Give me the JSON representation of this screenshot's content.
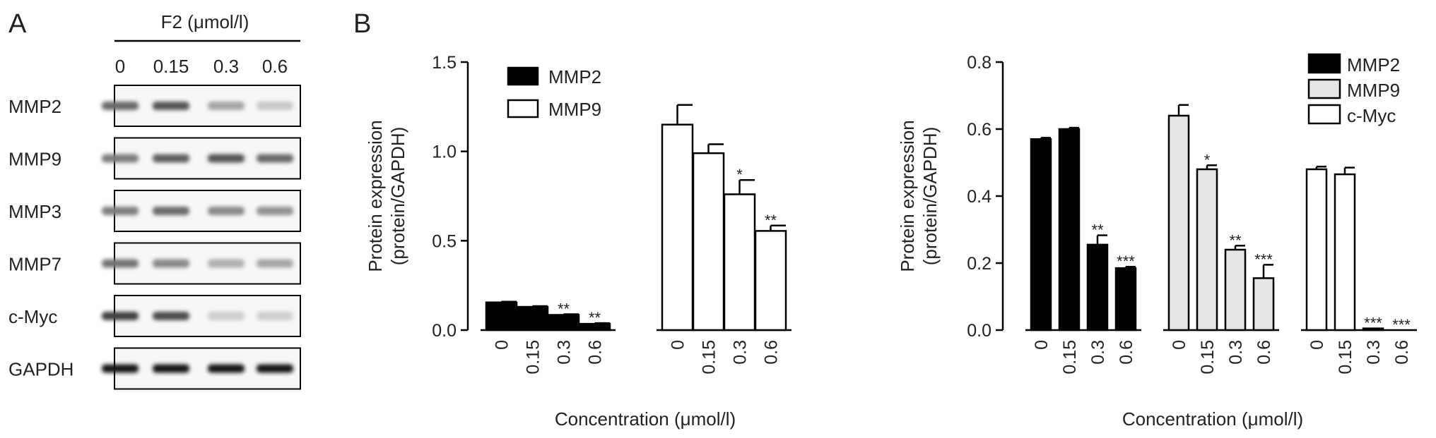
{
  "panels": {
    "a": "A",
    "b": "B"
  },
  "blot": {
    "treatment_label": "F2 (μmol/l)",
    "lane_labels": [
      "0",
      "0.15",
      "0.3",
      "0.6"
    ],
    "rows": [
      {
        "name": "MMP2",
        "intensities": [
          0.55,
          0.65,
          0.25,
          0.08
        ]
      },
      {
        "name": "MMP9",
        "intensities": [
          0.45,
          0.6,
          0.65,
          0.55
        ]
      },
      {
        "name": "MMP3",
        "intensities": [
          0.45,
          0.55,
          0.4,
          0.35
        ]
      },
      {
        "name": "MMP7",
        "intensities": [
          0.5,
          0.4,
          0.2,
          0.25
        ]
      },
      {
        "name": "c-Myc",
        "intensities": [
          0.75,
          0.7,
          0.05,
          0.05
        ]
      },
      {
        "name": "GAPDH",
        "intensities": [
          0.95,
          0.95,
          0.95,
          0.95
        ]
      }
    ]
  },
  "chart_data": [
    {
      "type": "bar",
      "title": "",
      "xlabel": "Concentration (μmol/l)",
      "ylabel": "Protein expression\n(protein/GAPDH)",
      "ylim": [
        0,
        1.5
      ],
      "yticks": [
        "0.0",
        "0.5",
        "1.0",
        "1.5"
      ],
      "categories": [
        "0",
        "0.15",
        "0.3",
        "0.6"
      ],
      "grid": false,
      "legend": "top-left",
      "series": [
        {
          "name": "MMP2",
          "fill": "#000000",
          "values": [
            0.155,
            0.13,
            0.085,
            0.035
          ],
          "errors": [
            0.004,
            0.004,
            0.004,
            0.004
          ],
          "significance": [
            "",
            "",
            "**",
            "**"
          ]
        },
        {
          "name": "MMP9",
          "fill": "#ffffff",
          "values": [
            1.15,
            0.99,
            0.76,
            0.555
          ],
          "errors": [
            0.11,
            0.05,
            0.08,
            0.03
          ],
          "significance": [
            "",
            "",
            "*",
            "**"
          ]
        }
      ]
    },
    {
      "type": "bar",
      "title": "",
      "xlabel": "Concentration (μmol/l)",
      "ylabel": "Protein expression\n(protein/GAPDH)",
      "ylim": [
        0,
        0.8
      ],
      "yticks": [
        "0.0",
        "0.2",
        "0.4",
        "0.6",
        "0.8"
      ],
      "categories": [
        "0",
        "0.15",
        "0.3",
        "0.6"
      ],
      "grid": false,
      "legend": "top-right",
      "series": [
        {
          "name": "MMP2",
          "fill": "#000000",
          "values": [
            0.57,
            0.6,
            0.255,
            0.185
          ],
          "errors": [
            0.004,
            0.004,
            0.028,
            0.004
          ],
          "significance": [
            "",
            "",
            "**",
            "***"
          ]
        },
        {
          "name": "MMP9",
          "fill": "#e6e6e6",
          "values": [
            0.64,
            0.48,
            0.24,
            0.155
          ],
          "errors": [
            0.032,
            0.012,
            0.012,
            0.04
          ],
          "significance": [
            "",
            "*",
            "**",
            "***"
          ]
        },
        {
          "name": "c-Myc",
          "fill": "#ffffff",
          "values": [
            0.48,
            0.465,
            0.005,
            0.0
          ],
          "errors": [
            0.008,
            0.02,
            0.0,
            0.0
          ],
          "significance": [
            "",
            "",
            "***",
            "***"
          ]
        }
      ]
    }
  ]
}
